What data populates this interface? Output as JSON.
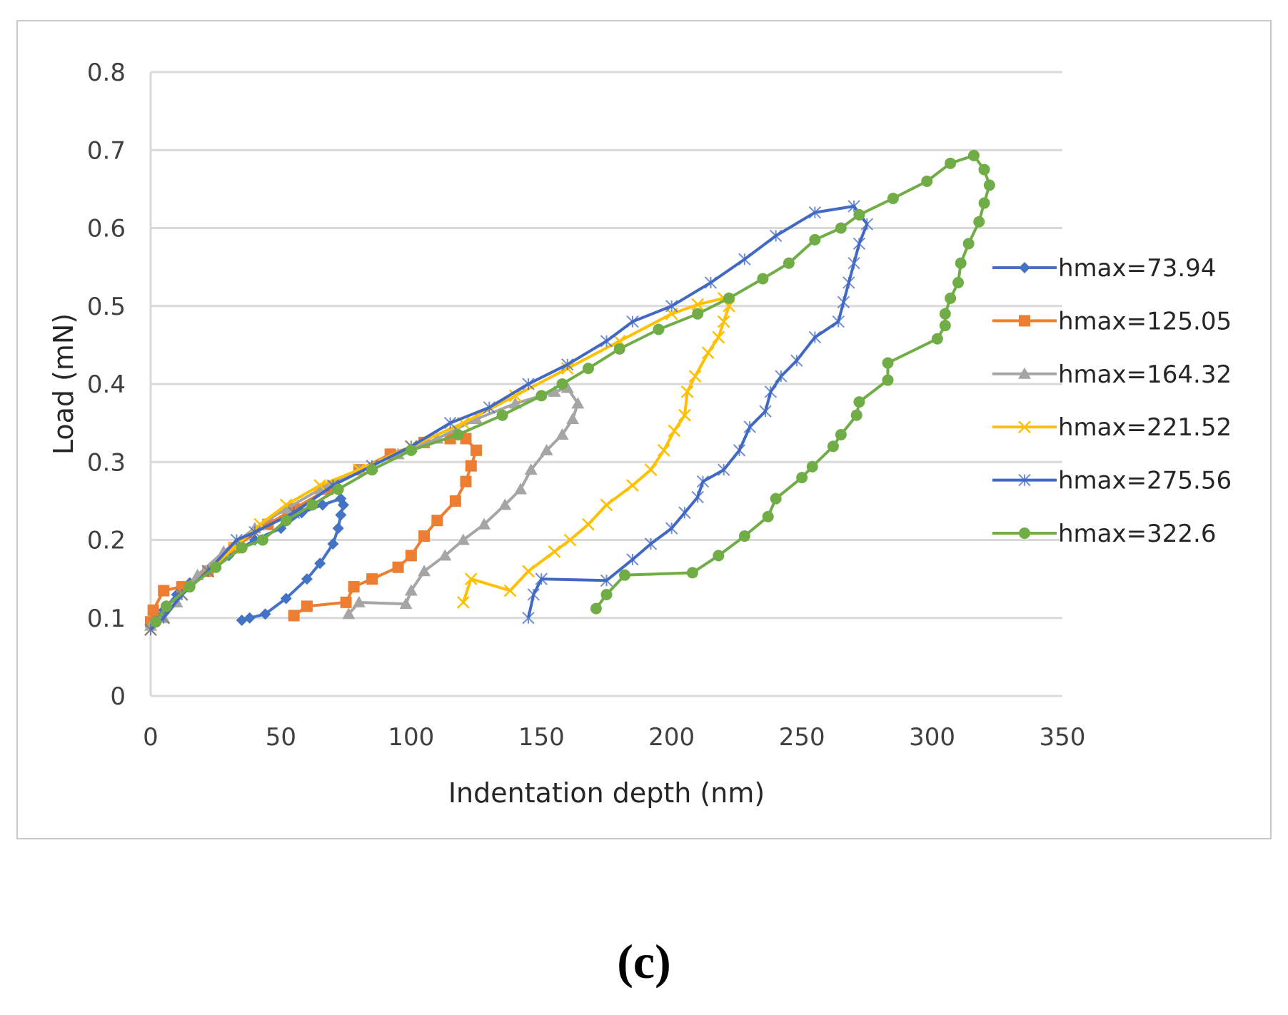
{
  "panel_label": "(c)",
  "chart_data": {
    "type": "line",
    "title": "",
    "xlabel": "Indentation depth (nm)",
    "ylabel": "Load (mN)",
    "xlim": [
      0,
      350
    ],
    "ylim": [
      0,
      0.8
    ],
    "xticks": [
      "0",
      "50",
      "100",
      "150",
      "200",
      "250",
      "300",
      "350"
    ],
    "xtick_values": [
      0,
      50,
      100,
      150,
      200,
      250,
      300,
      350
    ],
    "yticks": [
      "0",
      "0.1",
      "0.2",
      "0.3",
      "0.4",
      "0.5",
      "0.6",
      "0.7",
      "0.8"
    ],
    "ytick_values": [
      0,
      0.1,
      0.2,
      0.3,
      0.4,
      0.5,
      0.6,
      0.7,
      0.8
    ],
    "grid": "horizontal",
    "legend_position": "right",
    "series": [
      {
        "name": "hmax=73.94",
        "color": "#4472c4",
        "marker": "diamond",
        "points": [
          [
            0,
            0.09
          ],
          [
            2,
            0.1
          ],
          [
            5,
            0.11
          ],
          [
            10,
            0.13
          ],
          [
            15,
            0.145
          ],
          [
            22,
            0.16
          ],
          [
            30,
            0.18
          ],
          [
            40,
            0.2
          ],
          [
            50,
            0.215
          ],
          [
            58,
            0.235
          ],
          [
            66,
            0.245
          ],
          [
            73,
            0.253
          ],
          [
            74,
            0.245
          ],
          [
            73,
            0.232
          ],
          [
            72,
            0.215
          ],
          [
            70,
            0.195
          ],
          [
            65,
            0.17
          ],
          [
            60,
            0.15
          ],
          [
            52,
            0.125
          ],
          [
            44,
            0.105
          ],
          [
            38,
            0.1
          ],
          [
            35,
            0.097
          ]
        ]
      },
      {
        "name": "hmax=125.05",
        "color": "#ed7d31",
        "marker": "square",
        "points": [
          [
            0,
            0.095
          ],
          [
            1,
            0.11
          ],
          [
            5,
            0.135
          ],
          [
            12,
            0.14
          ],
          [
            22,
            0.16
          ],
          [
            32,
            0.19
          ],
          [
            45,
            0.22
          ],
          [
            55,
            0.24
          ],
          [
            68,
            0.265
          ],
          [
            80,
            0.29
          ],
          [
            92,
            0.31
          ],
          [
            105,
            0.325
          ],
          [
            115,
            0.33
          ],
          [
            121,
            0.33
          ],
          [
            125,
            0.315
          ],
          [
            123,
            0.295
          ],
          [
            121,
            0.275
          ],
          [
            117,
            0.25
          ],
          [
            110,
            0.225
          ],
          [
            105,
            0.205
          ],
          [
            100,
            0.18
          ],
          [
            95,
            0.165
          ],
          [
            85,
            0.15
          ],
          [
            78,
            0.14
          ],
          [
            75,
            0.12
          ],
          [
            60,
            0.115
          ],
          [
            55,
            0.103
          ]
        ]
      },
      {
        "name": "hmax=164.32",
        "color": "#a5a5a5",
        "marker": "triangle",
        "points": [
          [
            0,
            0.09
          ],
          [
            5,
            0.1
          ],
          [
            10,
            0.12
          ],
          [
            18,
            0.155
          ],
          [
            28,
            0.185
          ],
          [
            40,
            0.215
          ],
          [
            52,
            0.24
          ],
          [
            65,
            0.265
          ],
          [
            80,
            0.29
          ],
          [
            95,
            0.31
          ],
          [
            110,
            0.33
          ],
          [
            125,
            0.355
          ],
          [
            140,
            0.375
          ],
          [
            155,
            0.39
          ],
          [
            160,
            0.395
          ],
          [
            164,
            0.375
          ],
          [
            162,
            0.355
          ],
          [
            158,
            0.335
          ],
          [
            152,
            0.315
          ],
          [
            146,
            0.29
          ],
          [
            142,
            0.265
          ],
          [
            136,
            0.245
          ],
          [
            128,
            0.22
          ],
          [
            120,
            0.2
          ],
          [
            113,
            0.18
          ],
          [
            105,
            0.16
          ],
          [
            100,
            0.135
          ],
          [
            98,
            0.118
          ],
          [
            80,
            0.12
          ],
          [
            76,
            0.105
          ]
        ]
      },
      {
        "name": "hmax=221.52",
        "color": "#ffc000",
        "marker": "x",
        "points": [
          [
            0,
            0.085
          ],
          [
            5,
            0.1
          ],
          [
            12,
            0.13
          ],
          [
            22,
            0.16
          ],
          [
            32,
            0.19
          ],
          [
            42,
            0.22
          ],
          [
            52,
            0.245
          ],
          [
            65,
            0.27
          ],
          [
            80,
            0.29
          ],
          [
            100,
            0.32
          ],
          [
            120,
            0.35
          ],
          [
            140,
            0.385
          ],
          [
            160,
            0.42
          ],
          [
            180,
            0.455
          ],
          [
            200,
            0.49
          ],
          [
            210,
            0.502
          ],
          [
            220,
            0.51
          ],
          [
            222,
            0.5
          ],
          [
            220,
            0.48
          ],
          [
            218,
            0.46
          ],
          [
            214,
            0.44
          ],
          [
            209,
            0.41
          ],
          [
            206,
            0.39
          ],
          [
            205,
            0.36
          ],
          [
            201,
            0.34
          ],
          [
            197,
            0.315
          ],
          [
            192,
            0.29
          ],
          [
            185,
            0.27
          ],
          [
            175,
            0.245
          ],
          [
            168,
            0.22
          ],
          [
            161,
            0.2
          ],
          [
            155,
            0.185
          ],
          [
            145,
            0.16
          ],
          [
            138,
            0.135
          ],
          [
            123,
            0.15
          ],
          [
            120,
            0.12
          ]
        ]
      },
      {
        "name": "hmax=275.56",
        "color": "#4169c4",
        "marker": "star",
        "points": [
          [
            0,
            0.085
          ],
          [
            5,
            0.1
          ],
          [
            12,
            0.13
          ],
          [
            22,
            0.16
          ],
          [
            33,
            0.2
          ],
          [
            40,
            0.21
          ],
          [
            55,
            0.235
          ],
          [
            70,
            0.27
          ],
          [
            85,
            0.295
          ],
          [
            100,
            0.32
          ],
          [
            115,
            0.35
          ],
          [
            130,
            0.37
          ],
          [
            145,
            0.4
          ],
          [
            160,
            0.425
          ],
          [
            175,
            0.455
          ],
          [
            185,
            0.48
          ],
          [
            200,
            0.5
          ],
          [
            215,
            0.53
          ],
          [
            228,
            0.56
          ],
          [
            240,
            0.59
          ],
          [
            255,
            0.62
          ],
          [
            270,
            0.628
          ],
          [
            275,
            0.605
          ],
          [
            272,
            0.58
          ],
          [
            270,
            0.555
          ],
          [
            268,
            0.53
          ],
          [
            266,
            0.505
          ],
          [
            264,
            0.48
          ],
          [
            255,
            0.46
          ],
          [
            248,
            0.43
          ],
          [
            242,
            0.41
          ],
          [
            238,
            0.39
          ],
          [
            236,
            0.365
          ],
          [
            230,
            0.345
          ],
          [
            226,
            0.315
          ],
          [
            220,
            0.29
          ],
          [
            212,
            0.275
          ],
          [
            210,
            0.255
          ],
          [
            205,
            0.235
          ],
          [
            200,
            0.215
          ],
          [
            192,
            0.195
          ],
          [
            185,
            0.175
          ],
          [
            175,
            0.148
          ],
          [
            150,
            0.15
          ],
          [
            147,
            0.13
          ],
          [
            145,
            0.1
          ]
        ]
      },
      {
        "name": "hmax=322.6",
        "color": "#70ad47",
        "marker": "circle",
        "points": [
          [
            2,
            0.095
          ],
          [
            6,
            0.115
          ],
          [
            15,
            0.14
          ],
          [
            25,
            0.165
          ],
          [
            35,
            0.19
          ],
          [
            43,
            0.2
          ],
          [
            52,
            0.225
          ],
          [
            62,
            0.245
          ],
          [
            72,
            0.265
          ],
          [
            85,
            0.29
          ],
          [
            100,
            0.315
          ],
          [
            118,
            0.335
          ],
          [
            135,
            0.36
          ],
          [
            150,
            0.385
          ],
          [
            158,
            0.4
          ],
          [
            168,
            0.42
          ],
          [
            180,
            0.445
          ],
          [
            195,
            0.47
          ],
          [
            210,
            0.49
          ],
          [
            222,
            0.51
          ],
          [
            235,
            0.535
          ],
          [
            245,
            0.555
          ],
          [
            255,
            0.585
          ],
          [
            265,
            0.6
          ],
          [
            272,
            0.617
          ],
          [
            285,
            0.638
          ],
          [
            298,
            0.66
          ],
          [
            307,
            0.683
          ],
          [
            316,
            0.693
          ],
          [
            320,
            0.675
          ],
          [
            322,
            0.655
          ],
          [
            320,
            0.632
          ],
          [
            318,
            0.608
          ],
          [
            314,
            0.58
          ],
          [
            311,
            0.555
          ],
          [
            310,
            0.53
          ],
          [
            307,
            0.51
          ],
          [
            305,
            0.49
          ],
          [
            305,
            0.475
          ],
          [
            302,
            0.458
          ],
          [
            283,
            0.427
          ],
          [
            283,
            0.405
          ],
          [
            272,
            0.377
          ],
          [
            271,
            0.36
          ],
          [
            265,
            0.335
          ],
          [
            262,
            0.32
          ],
          [
            254,
            0.294
          ],
          [
            250,
            0.28
          ],
          [
            240,
            0.253
          ],
          [
            237,
            0.23
          ],
          [
            228,
            0.205
          ],
          [
            218,
            0.18
          ],
          [
            208,
            0.158
          ],
          [
            182,
            0.155
          ],
          [
            175,
            0.13
          ],
          [
            171,
            0.112
          ]
        ]
      }
    ]
  }
}
